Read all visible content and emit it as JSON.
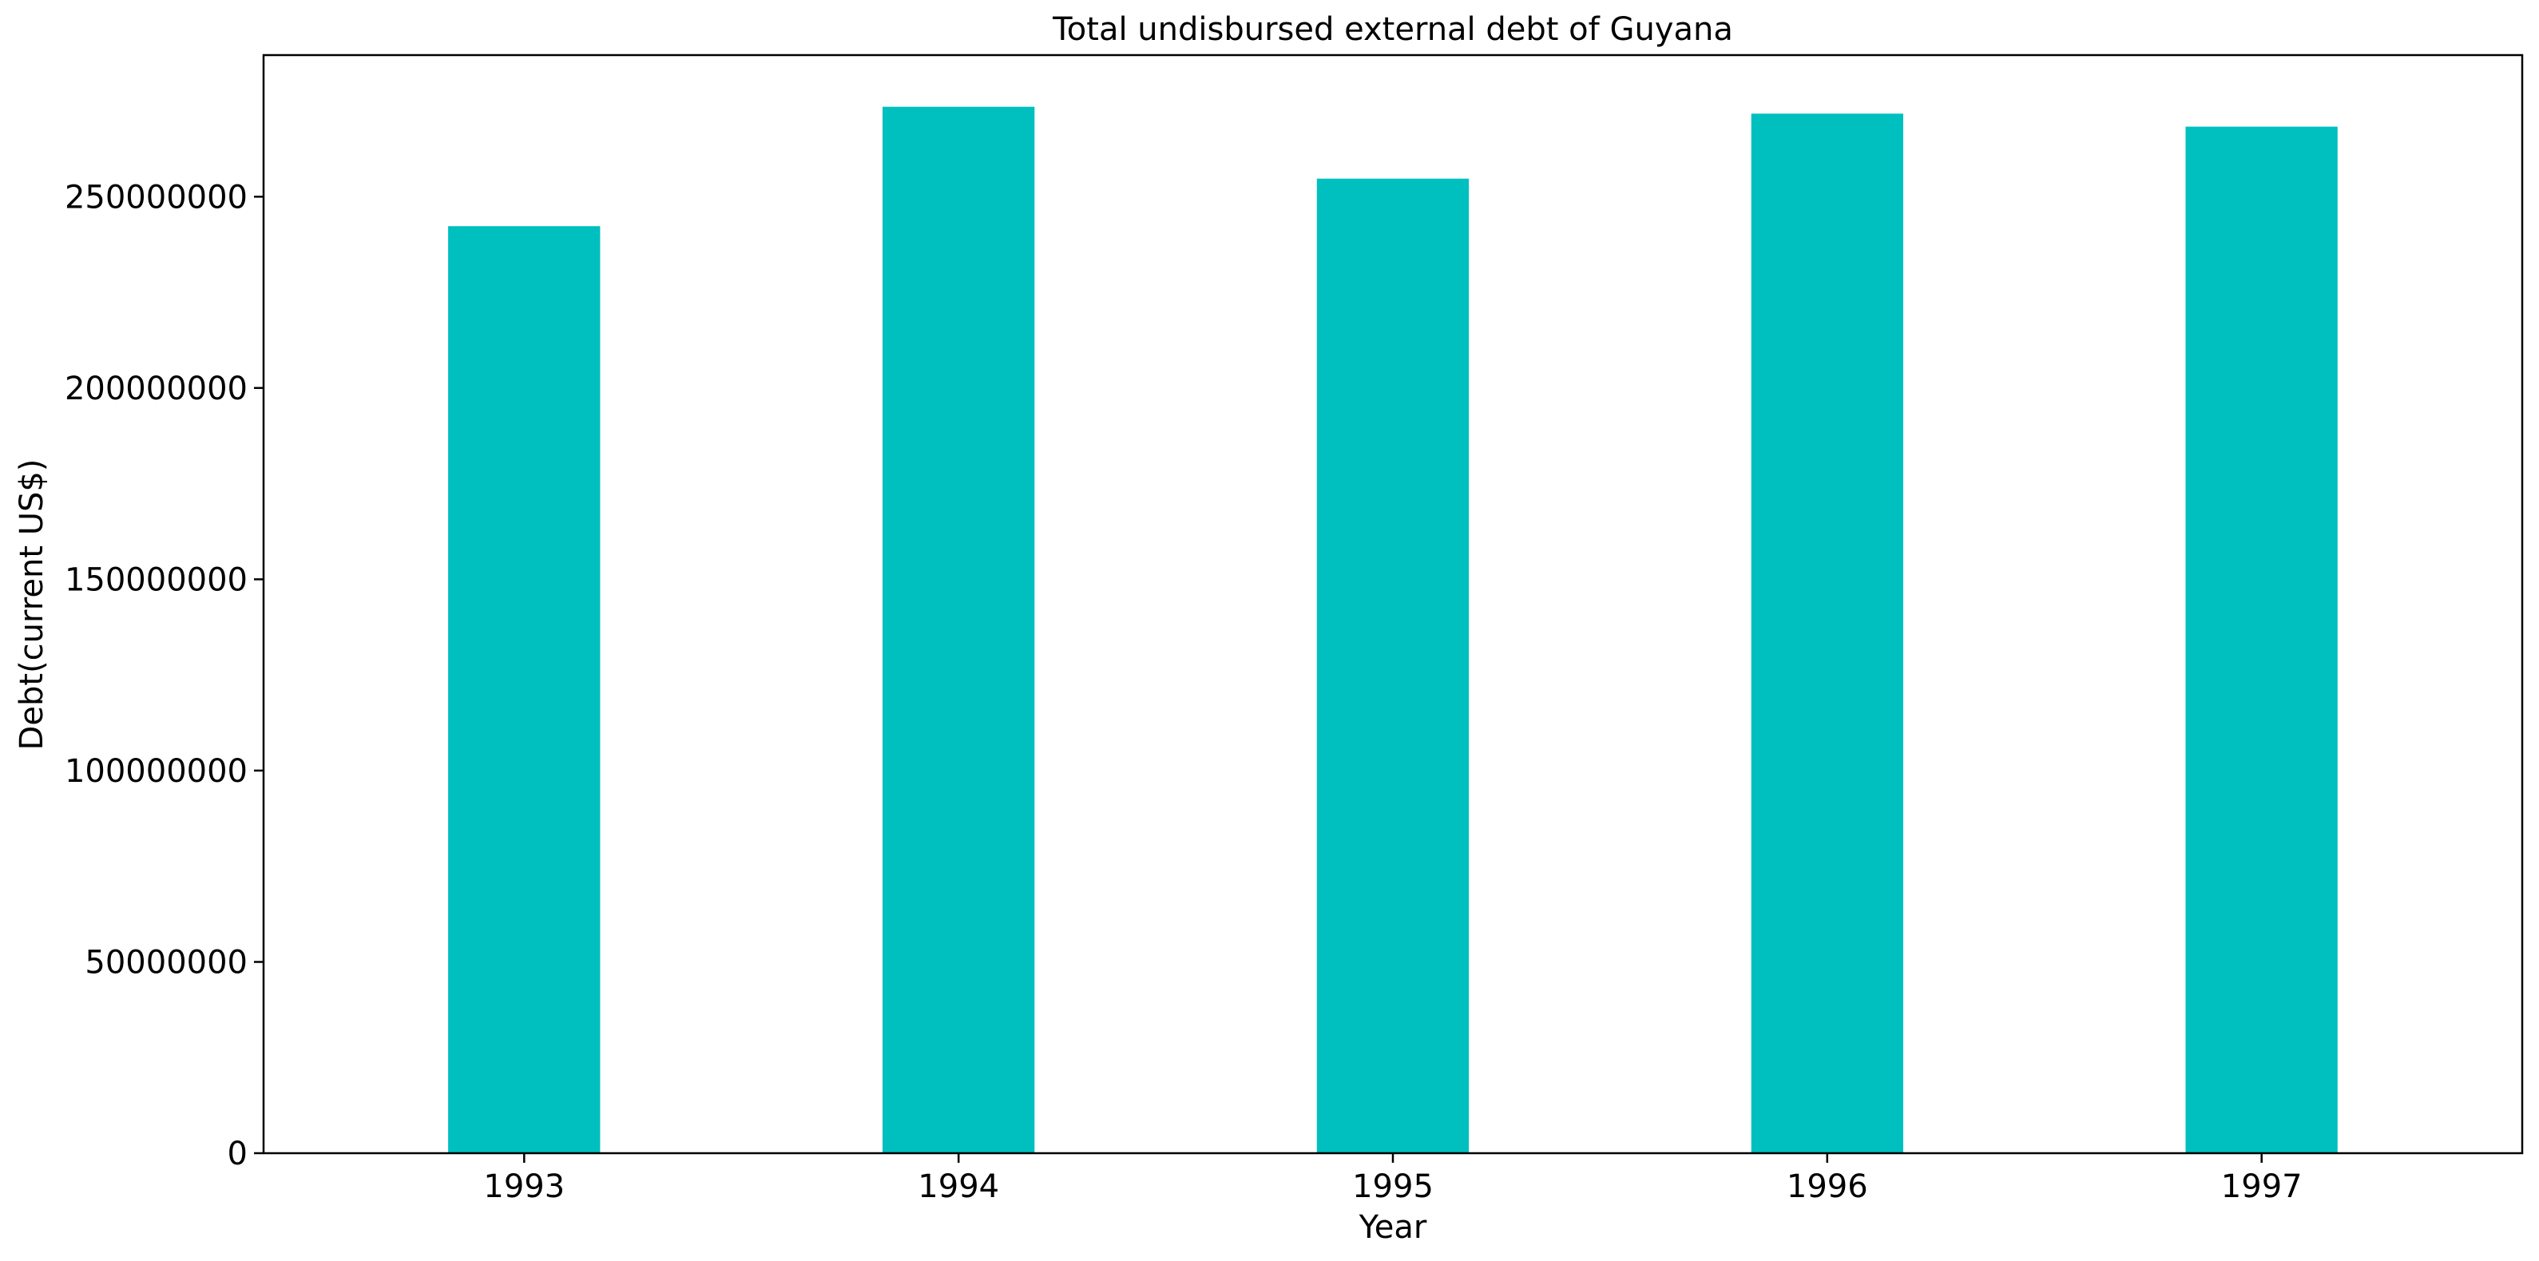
{
  "chart_data": {
    "type": "bar",
    "title": "Total undisbursed external debt of Guyana",
    "xlabel": "Year",
    "ylabel": "Debt(current US$)",
    "categories": [
      "1993",
      "1994",
      "1995",
      "1996",
      "1997"
    ],
    "series": [
      {
        "values": [
          242300000,
          273500000,
          254700000,
          271700000,
          268300000
        ]
      }
    ],
    "ylim": [
      0,
      287000000
    ],
    "yticks": [
      0,
      50000000,
      100000000,
      150000000,
      200000000,
      250000000
    ],
    "ytick_labels": [
      "0",
      "50000000",
      "100000000",
      "150000000",
      "200000000",
      "250000000"
    ],
    "bar_color": "#00bfbf",
    "grid": false,
    "legend": "none"
  }
}
